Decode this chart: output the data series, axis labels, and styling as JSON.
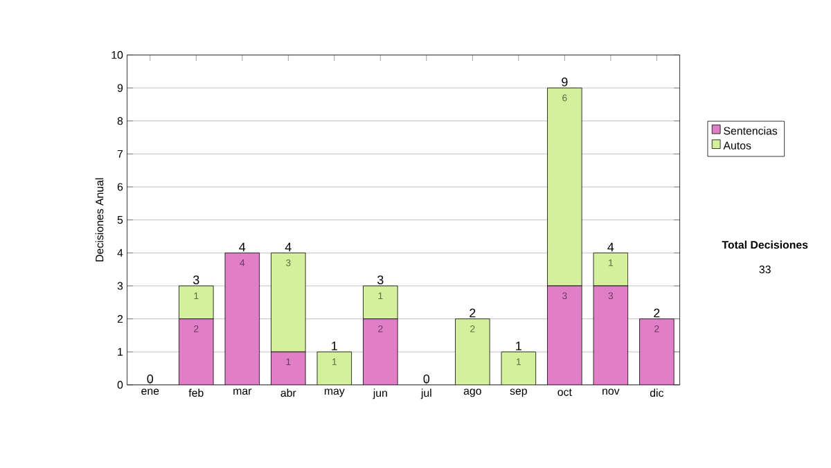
{
  "chart_data": {
    "type": "bar",
    "stacked": true,
    "ylabel": "Decisiones Anual",
    "categories": [
      "ene",
      "feb",
      "mar",
      "abr",
      "may",
      "jun",
      "jul",
      "ago",
      "sep",
      "oct",
      "nov",
      "dic"
    ],
    "series": [
      {
        "name": "Sentencias",
        "color": "#e07fc8",
        "values": [
          0,
          2,
          4,
          1,
          0,
          2,
          0,
          0,
          0,
          3,
          3,
          2
        ],
        "value_labels": [
          null,
          "2",
          "4",
          "1",
          null,
          "2",
          null,
          null,
          null,
          "3",
          "3",
          "2"
        ]
      },
      {
        "name": "Autos",
        "color": "#d4f09c",
        "values": [
          0,
          1,
          0,
          3,
          1,
          1,
          0,
          2,
          1,
          6,
          1,
          0
        ],
        "value_labels": [
          null,
          "1",
          null,
          "3",
          "1",
          "1",
          null,
          "2",
          "1",
          "6",
          "1",
          null
        ]
      }
    ],
    "totals": [
      "0",
      "3",
      "4",
      "4",
      "1",
      "3",
      "0",
      "2",
      "1",
      "9",
      "4",
      "2"
    ],
    "ylim": [
      0,
      10
    ],
    "yticks": [
      0,
      1,
      2,
      3,
      4,
      5,
      6,
      7,
      8,
      9,
      10
    ],
    "grid": "y",
    "legend": "right",
    "annotations": [
      "Total Decisiones",
      "33"
    ]
  }
}
